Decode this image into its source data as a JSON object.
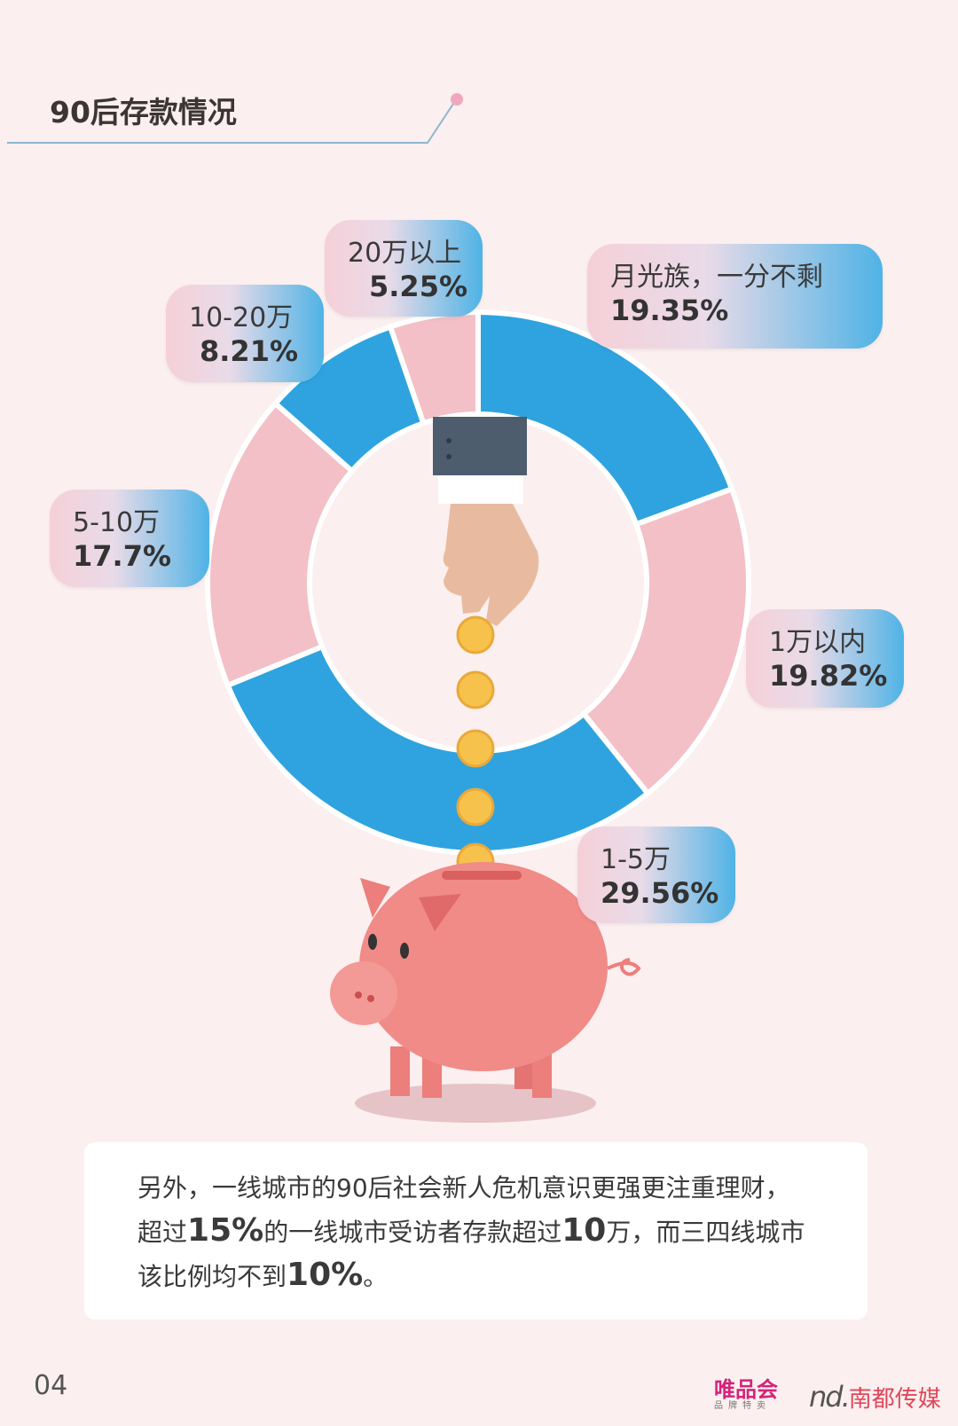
{
  "header": {
    "title": "90后存款情况"
  },
  "chart_data": {
    "type": "pie",
    "subtype": "donut",
    "start": "top",
    "direction": "clockwise",
    "categories": [
      "月光族，一分不剩",
      "1万以内",
      "1-5万",
      "5-10万",
      "10-20万",
      "20万以上"
    ],
    "values": [
      19.35,
      19.82,
      29.56,
      17.7,
      8.21,
      5.25
    ],
    "value_labels": [
      "19.35%",
      "19.82%",
      "29.56%",
      "17.7%",
      "8.21%",
      "5.25%"
    ],
    "colors": [
      "#2fa3df",
      "#f2c0c6",
      "#2fa3df",
      "#f2c0c6",
      "#2fa3df",
      "#f2c0c6"
    ]
  },
  "note": {
    "line1": "另外，一线城市的90后社会新人危机意识更强更注重理财，",
    "line2_a": "超过",
    "line2_b": "15%",
    "line2_c": "的一线城市受访者存款超过",
    "line2_d": "10",
    "line2_e": "万，而三四线城市",
    "line3_a": "该比例均不到",
    "line3_b": "10%",
    "line3_c": "。"
  },
  "footer": {
    "page_number": "04",
    "logo1": "唯品会",
    "logo1_sub": "品牌特卖",
    "logo2_mark": "nd.",
    "logo2": "南都传媒"
  },
  "colors": {
    "background": "#fbefef",
    "blue": "#2fa3df",
    "pink": "#f2c0c6",
    "pig": "#f08b88"
  }
}
